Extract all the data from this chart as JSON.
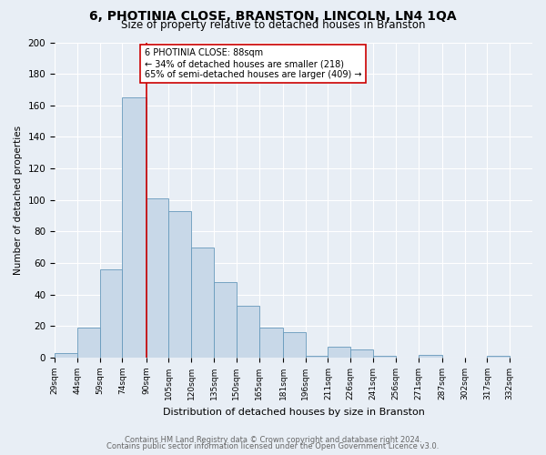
{
  "title": "6, PHOTINIA CLOSE, BRANSTON, LINCOLN, LN4 1QA",
  "subtitle": "Size of property relative to detached houses in Branston",
  "xlabel": "Distribution of detached houses by size in Branston",
  "ylabel": "Number of detached properties",
  "bin_labels": [
    "29sqm",
    "44sqm",
    "59sqm",
    "74sqm",
    "90sqm",
    "105sqm",
    "120sqm",
    "135sqm",
    "150sqm",
    "165sqm",
    "181sqm",
    "196sqm",
    "211sqm",
    "226sqm",
    "241sqm",
    "256sqm",
    "271sqm",
    "287sqm",
    "302sqm",
    "317sqm",
    "332sqm"
  ],
  "bin_edges": [
    29,
    44,
    59,
    74,
    90,
    105,
    120,
    135,
    150,
    165,
    181,
    196,
    211,
    226,
    241,
    256,
    271,
    287,
    302,
    317,
    332,
    347
  ],
  "bar_heights": [
    3,
    19,
    56,
    165,
    101,
    93,
    70,
    48,
    33,
    19,
    16,
    1,
    7,
    5,
    1,
    0,
    2,
    0,
    0,
    1,
    0
  ],
  "bar_color": "#c8d8e8",
  "bar_edge_color": "#6699bb",
  "vline_x": 90,
  "vline_color": "#cc0000",
  "annotation_text": "6 PHOTINIA CLOSE: 88sqm\n← 34% of detached houses are smaller (218)\n65% of semi-detached houses are larger (409) →",
  "annotation_box_color": "#ffffff",
  "annotation_border_color": "#cc0000",
  "ylim": [
    0,
    200
  ],
  "yticks": [
    0,
    20,
    40,
    60,
    80,
    100,
    120,
    140,
    160,
    180,
    200
  ],
  "footer_line1": "Contains HM Land Registry data © Crown copyright and database right 2024.",
  "footer_line2": "Contains public sector information licensed under the Open Government Licence v3.0.",
  "bg_color": "#e8eef5",
  "plot_bg_color": "#e8eef5",
  "grid_color": "#ffffff",
  "title_fontsize": 10,
  "subtitle_fontsize": 8.5
}
